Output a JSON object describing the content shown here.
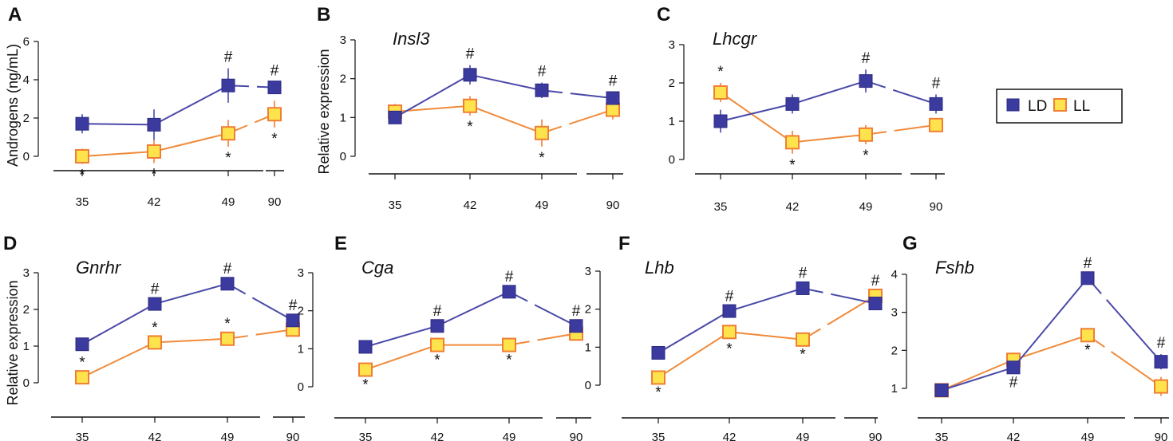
{
  "colors": {
    "ld_fill": "#3b3a9e",
    "ld_line": "#4a49a8",
    "ll_fill": "#ffe34d",
    "ll_stroke": "#f07e34",
    "ll_line": "#f08a3a",
    "axis": "#111111",
    "error": "#3b3a9e"
  },
  "legend": {
    "ld": "LD",
    "ll": "LL"
  },
  "chart_data": [
    {
      "type": "line",
      "panel": "A",
      "gene": "",
      "ylabel": "Androgens (ng/mL)",
      "ylim": [
        0,
        6
      ],
      "yticks": [
        "0",
        "2",
        "4",
        "6"
      ],
      "categories": [
        "35",
        "42",
        "49",
        "90"
      ],
      "series": [
        {
          "name": "LD",
          "values": [
            1.7,
            1.65,
            3.7,
            3.6
          ],
          "errors": [
            0.5,
            0.8,
            0.9,
            0.3
          ]
        },
        {
          "name": "LL",
          "values": [
            0.0,
            0.25,
            1.2,
            2.2
          ],
          "errors": [
            0.4,
            0.6,
            0.7,
            0.7
          ]
        }
      ],
      "annotations": [
        {
          "series": "LL",
          "index": 0,
          "mark": "*",
          "pos": "below"
        },
        {
          "series": "LL",
          "index": 1,
          "mark": "*",
          "pos": "below"
        },
        {
          "series": "LL",
          "index": 2,
          "mark": "*",
          "pos": "below"
        },
        {
          "series": "LL",
          "index": 3,
          "mark": "*",
          "pos": "below"
        },
        {
          "series": "LD",
          "index": 2,
          "mark": "#",
          "pos": "above"
        },
        {
          "series": "LD",
          "index": 3,
          "mark": "#",
          "pos": "above"
        }
      ]
    },
    {
      "type": "line",
      "panel": "B",
      "gene": "Insl3",
      "ylabel": "Relative expression",
      "ylim": [
        0,
        3
      ],
      "yticks": [
        "0",
        "1",
        "2",
        "3"
      ],
      "categories": [
        "35",
        "42",
        "49",
        "90"
      ],
      "series": [
        {
          "name": "LD",
          "values": [
            1.0,
            2.1,
            1.7,
            1.5
          ],
          "errors": [
            0.1,
            0.25,
            0.2,
            0.15
          ]
        },
        {
          "name": "LL",
          "values": [
            1.15,
            1.3,
            0.6,
            1.2
          ],
          "errors": [
            0.2,
            0.25,
            0.35,
            0.25
          ]
        }
      ],
      "annotations": [
        {
          "series": "LL",
          "index": 1,
          "mark": "*",
          "pos": "below"
        },
        {
          "series": "LL",
          "index": 2,
          "mark": "*",
          "pos": "below"
        },
        {
          "series": "LD",
          "index": 1,
          "mark": "#",
          "pos": "above"
        },
        {
          "series": "LD",
          "index": 2,
          "mark": "#",
          "pos": "above"
        },
        {
          "series": "LD",
          "index": 3,
          "mark": "#",
          "pos": "above"
        }
      ]
    },
    {
      "type": "line",
      "panel": "C",
      "gene": "Lhcgr",
      "ylabel": "",
      "ylim": [
        0,
        3
      ],
      "yticks": [
        "0",
        "1",
        "2",
        "3"
      ],
      "categories": [
        "35",
        "42",
        "49",
        "90"
      ],
      "series": [
        {
          "name": "LD",
          "values": [
            1.0,
            1.45,
            2.05,
            1.45
          ],
          "errors": [
            0.3,
            0.25,
            0.3,
            0.25
          ]
        },
        {
          "name": "LL",
          "values": [
            1.75,
            0.45,
            0.65,
            0.9
          ],
          "errors": [
            0.25,
            0.3,
            0.25,
            0.15
          ]
        }
      ],
      "annotations": [
        {
          "series": "LL",
          "index": 0,
          "mark": "*",
          "pos": "above"
        },
        {
          "series": "LL",
          "index": 1,
          "mark": "*",
          "pos": "below"
        },
        {
          "series": "LL",
          "index": 2,
          "mark": "*",
          "pos": "below"
        },
        {
          "series": "LD",
          "index": 2,
          "mark": "#",
          "pos": "above"
        },
        {
          "series": "LD",
          "index": 3,
          "mark": "#",
          "pos": "above"
        }
      ]
    },
    {
      "type": "line",
      "panel": "D",
      "gene": "Gnrhr",
      "ylabel": "Relative expression",
      "ylim": [
        0,
        3
      ],
      "yticks": [
        "0",
        "1",
        "2",
        "3"
      ],
      "categories": [
        "35",
        "42",
        "49",
        "90"
      ],
      "series": [
        {
          "name": "LD",
          "values": [
            1.05,
            2.15,
            2.7,
            1.7
          ],
          "errors": [
            0.05,
            0.1,
            0.1,
            0.1
          ]
        },
        {
          "name": "LL",
          "values": [
            0.15,
            1.1,
            1.2,
            1.45
          ],
          "errors": [
            0.1,
            0.1,
            0.1,
            0.1
          ]
        }
      ],
      "annotations": [
        {
          "series": "LL",
          "index": 0,
          "mark": "*",
          "pos": "above"
        },
        {
          "series": "LL",
          "index": 1,
          "mark": "*",
          "pos": "above"
        },
        {
          "series": "LL",
          "index": 2,
          "mark": "*",
          "pos": "above"
        },
        {
          "series": "LD",
          "index": 1,
          "mark": "#",
          "pos": "above"
        },
        {
          "series": "LD",
          "index": 2,
          "mark": "#",
          "pos": "above"
        },
        {
          "series": "LD",
          "index": 3,
          "mark": "#",
          "pos": "above"
        }
      ]
    },
    {
      "type": "line",
      "panel": "E",
      "gene": "Cga",
      "ylabel": "",
      "ylim": [
        0,
        3
      ],
      "yticks": [
        "0",
        "1",
        "2",
        "3"
      ],
      "categories": [
        "35",
        "42",
        "49",
        "90"
      ],
      "series": [
        {
          "name": "LD",
          "values": [
            1.05,
            1.6,
            2.5,
            1.6
          ],
          "errors": [
            0.05,
            0.1,
            0.1,
            0.1
          ]
        },
        {
          "name": "LL",
          "values": [
            0.45,
            1.1,
            1.1,
            1.4
          ],
          "errors": [
            0.1,
            0.1,
            0.1,
            0.1
          ]
        }
      ],
      "annotations": [
        {
          "series": "LL",
          "index": 0,
          "mark": "*",
          "pos": "below"
        },
        {
          "series": "LL",
          "index": 1,
          "mark": "*",
          "pos": "below"
        },
        {
          "series": "LL",
          "index": 2,
          "mark": "*",
          "pos": "below"
        },
        {
          "series": "LD",
          "index": 1,
          "mark": "#",
          "pos": "above"
        },
        {
          "series": "LD",
          "index": 2,
          "mark": "#",
          "pos": "above"
        },
        {
          "series": "LD",
          "index": 3,
          "mark": "#",
          "pos": "above"
        }
      ]
    },
    {
      "type": "line",
      "panel": "F",
      "gene": "Lhb",
      "ylabel": "",
      "ylim": [
        0,
        3
      ],
      "yticks": [
        "0",
        "1",
        "2",
        "3"
      ],
      "categories": [
        "35",
        "42",
        "49",
        "90"
      ],
      "series": [
        {
          "name": "LD",
          "values": [
            0.85,
            1.95,
            2.55,
            2.15
          ],
          "errors": [
            0.05,
            0.1,
            0.1,
            0.1
          ]
        },
        {
          "name": "LL",
          "values": [
            0.2,
            1.4,
            1.2,
            2.35
          ],
          "errors": [
            0.1,
            0.15,
            0.1,
            0.1
          ]
        }
      ],
      "annotations": [
        {
          "series": "LL",
          "index": 0,
          "mark": "*",
          "pos": "below"
        },
        {
          "series": "LL",
          "index": 1,
          "mark": "*",
          "pos": "below"
        },
        {
          "series": "LL",
          "index": 2,
          "mark": "*",
          "pos": "below"
        },
        {
          "series": "LD",
          "index": 1,
          "mark": "#",
          "pos": "above"
        },
        {
          "series": "LD",
          "index": 2,
          "mark": "#",
          "pos": "above"
        },
        {
          "series": "LL",
          "index": 3,
          "mark": "#",
          "pos": "above"
        }
      ]
    },
    {
      "type": "line",
      "panel": "G",
      "gene": "Fshb",
      "ylabel": "",
      "ylim": [
        1,
        4
      ],
      "yticks": [
        "1",
        "2",
        "3",
        "4"
      ],
      "categories": [
        "35",
        "42",
        "49",
        "90"
      ],
      "series": [
        {
          "name": "LD",
          "values": [
            0.95,
            1.55,
            3.9,
            1.7
          ],
          "errors": [
            0.05,
            0.1,
            0.1,
            0.2
          ]
        },
        {
          "name": "LL",
          "values": [
            0.95,
            1.75,
            2.4,
            1.05
          ],
          "errors": [
            0.05,
            0.1,
            0.1,
            0.25
          ]
        }
      ],
      "annotations": [
        {
          "series": "LD",
          "index": 1,
          "mark": "#",
          "pos": "below"
        },
        {
          "series": "LD",
          "index": 2,
          "mark": "#",
          "pos": "above"
        },
        {
          "series": "LD",
          "index": 3,
          "mark": "#",
          "pos": "above"
        },
        {
          "series": "LL",
          "index": 2,
          "mark": "*",
          "pos": "below"
        }
      ]
    }
  ]
}
